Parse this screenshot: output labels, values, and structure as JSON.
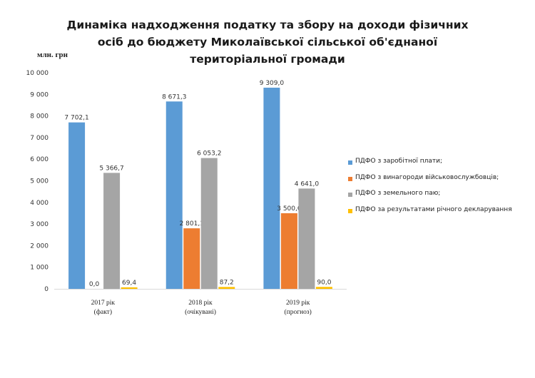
{
  "title": {
    "line1": "Динаміка надходження податку та збору на доходи фізичних",
    "line2": "осіб до бюджету Миколаївської сільської об'єднаної",
    "line3": "територіальної громади"
  },
  "unit_label": "млн. грн",
  "chart_data": {
    "type": "bar",
    "title": "Динаміка надходження податку та збору на доходи фізичних осіб до бюджету Миколаївської сільської об'єднаної територіальної громади",
    "ylabel": "млн. грн",
    "ylim": [
      0,
      10000
    ],
    "yticks": [
      0,
      1000,
      2000,
      3000,
      4000,
      5000,
      6000,
      7000,
      8000,
      9000,
      10000
    ],
    "ytick_labels": [
      "0",
      "1 000",
      "2 000",
      "3 000",
      "4 000",
      "5 000",
      "6 000",
      "7 000",
      "8 000",
      "9 000",
      "10 000"
    ],
    "categories": [
      [
        "2017 рік",
        "(факт)"
      ],
      [
        "2018 рік",
        "(очікувані)"
      ],
      [
        "2019 рік",
        "(прогноз)"
      ]
    ],
    "grid": false,
    "legend_position": "right",
    "series": [
      {
        "name": "ПДФО  з заробітної плати;",
        "color": "#5B9BD5",
        "values": [
          7702.1,
          8671.3,
          9309.0
        ],
        "labels": [
          "7 702,1",
          "8 671,3",
          "9 309,0"
        ]
      },
      {
        "name": "ПДФО з винагороди військовослужбовців;",
        "color": "#ED7D31",
        "values": [
          0.0,
          2801.1,
          3500.0
        ],
        "labels": [
          "0,0",
          "2 801,1",
          "3 500,0"
        ]
      },
      {
        "name": "ПДФО з земельного паю;",
        "color": "#A5A5A5",
        "values": [
          5366.7,
          6053.2,
          4641.0
        ],
        "labels": [
          "5 366,7",
          "6 053,2",
          "4 641,0"
        ]
      },
      {
        "name": "ПДФО за результатами річного декларування",
        "color": "#FFC000",
        "values": [
          69.4,
          87.2,
          90.0
        ],
        "labels": [
          "69,4",
          "87,2",
          "90,0"
        ]
      }
    ]
  }
}
